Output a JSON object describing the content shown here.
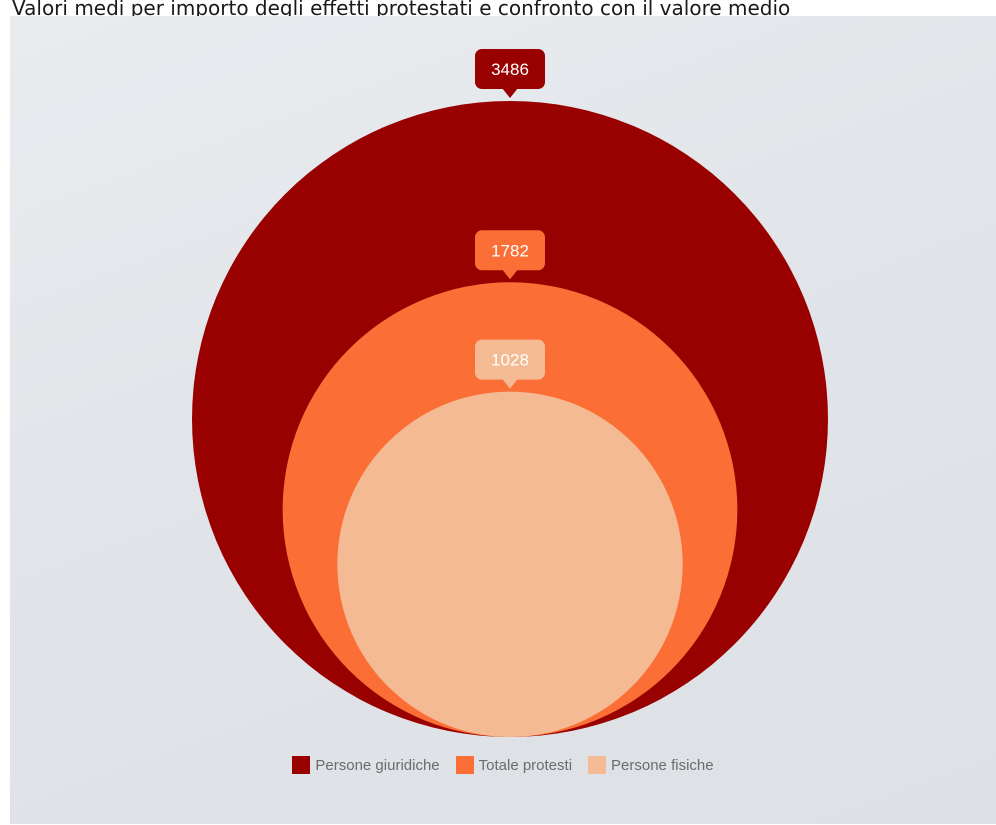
{
  "title": "Valori medi per importo degli effetti protestati e confronto con il valore medio",
  "chart_data": {
    "type": "nested-circles",
    "series": [
      {
        "name": "Persone giuridiche",
        "value": 3486,
        "color": "#990000"
      },
      {
        "name": "Totale protesti",
        "value": 1782,
        "color": "#fb6e35"
      },
      {
        "name": "Persone fisiche",
        "value": 1028,
        "color": "#f4ba94"
      }
    ],
    "legend_position": "bottom-center"
  }
}
